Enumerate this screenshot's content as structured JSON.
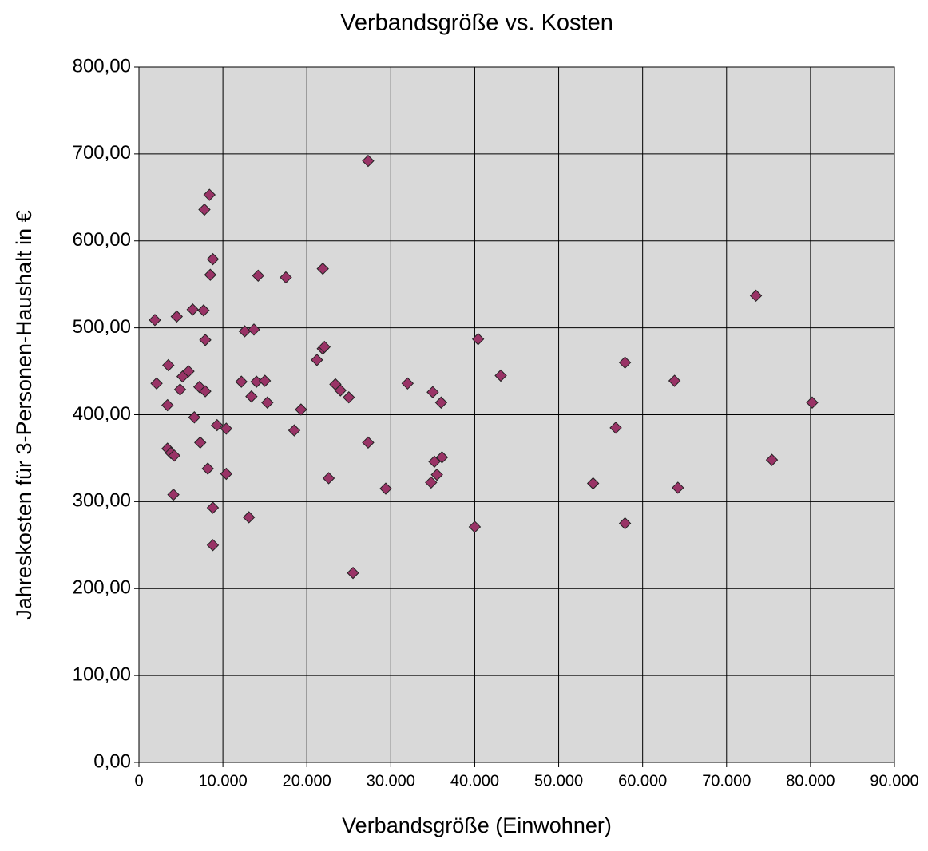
{
  "chart_data": {
    "type": "scatter",
    "title": "Verbandsgröße vs. Kosten",
    "x_label": "Verbandsgröße (Einwohner)",
    "y_label": "Jahreskosten für 3-Personen-Haushalt in €",
    "color": "#993366",
    "grid": true,
    "xlim": [
      0,
      90000
    ],
    "ylim": [
      0,
      800
    ],
    "xticks": [
      0,
      {
        "value": 10000,
        "label": "10.000"
      },
      {
        "value": 20000,
        "label": "20.000"
      },
      {
        "value": 30000,
        "label": "30.000"
      },
      {
        "value": 40000,
        "label": "40.000"
      },
      {
        "value": 50000,
        "label": "50.000"
      },
      {
        "value": 60000,
        "label": "60.000"
      },
      {
        "value": 70000,
        "label": "70.000"
      },
      {
        "value": 80000,
        "label": "80.000"
      },
      {
        "value": 90000,
        "label": "90.000"
      }
    ],
    "yticks": [
      {
        "value": 0,
        "label": "0,00"
      },
      {
        "value": 100,
        "label": "100,00"
      },
      {
        "value": 200,
        "label": "200,00"
      },
      {
        "value": 300,
        "label": "300,00"
      },
      {
        "value": 400,
        "label": "400,00"
      },
      {
        "value": 500,
        "label": "500,00"
      },
      {
        "value": 600,
        "label": "600,00"
      },
      {
        "value": 700,
        "label": "700,00"
      },
      {
        "value": 800,
        "label": "800,00"
      }
    ],
    "x": [
      1900,
      2100,
      3500,
      3400,
      3400,
      3800,
      4200,
      4100,
      4500,
      4900,
      5200,
      5900,
      6400,
      6600,
      7200,
      7300,
      7700,
      7800,
      7900,
      7900,
      8200,
      8400,
      8500,
      8800,
      8800,
      8800,
      9300,
      10400,
      10400,
      12200,
      12600,
      13100,
      13400,
      13700,
      14000,
      14200,
      15000,
      15300,
      17500,
      18500,
      19300,
      21200,
      21900,
      21900,
      22100,
      22600,
      23400,
      24000,
      25000,
      25500,
      27300,
      27300,
      29400,
      32000,
      35000,
      34800,
      35200,
      35500,
      36000,
      36100,
      40000,
      40400,
      43100,
      54100,
      56800,
      57900,
      57900,
      63800,
      64200,
      73500,
      75400,
      80200
    ],
    "values": [
      509,
      436,
      457,
      411,
      361,
      356,
      353,
      308,
      513,
      429,
      444,
      450,
      521,
      397,
      432,
      368,
      520,
      636,
      486,
      427,
      338,
      653,
      561,
      579,
      293,
      250,
      388,
      384,
      332,
      438,
      496,
      282,
      421,
      498,
      438,
      560,
      439,
      414,
      558,
      382,
      406,
      463,
      568,
      476,
      478,
      327,
      435,
      428,
      420,
      218,
      692,
      368,
      315,
      436,
      426,
      322,
      346,
      331,
      414,
      351,
      271,
      487,
      445,
      321,
      385,
      460,
      275,
      439,
      316,
      537,
      348,
      414
    ]
  }
}
